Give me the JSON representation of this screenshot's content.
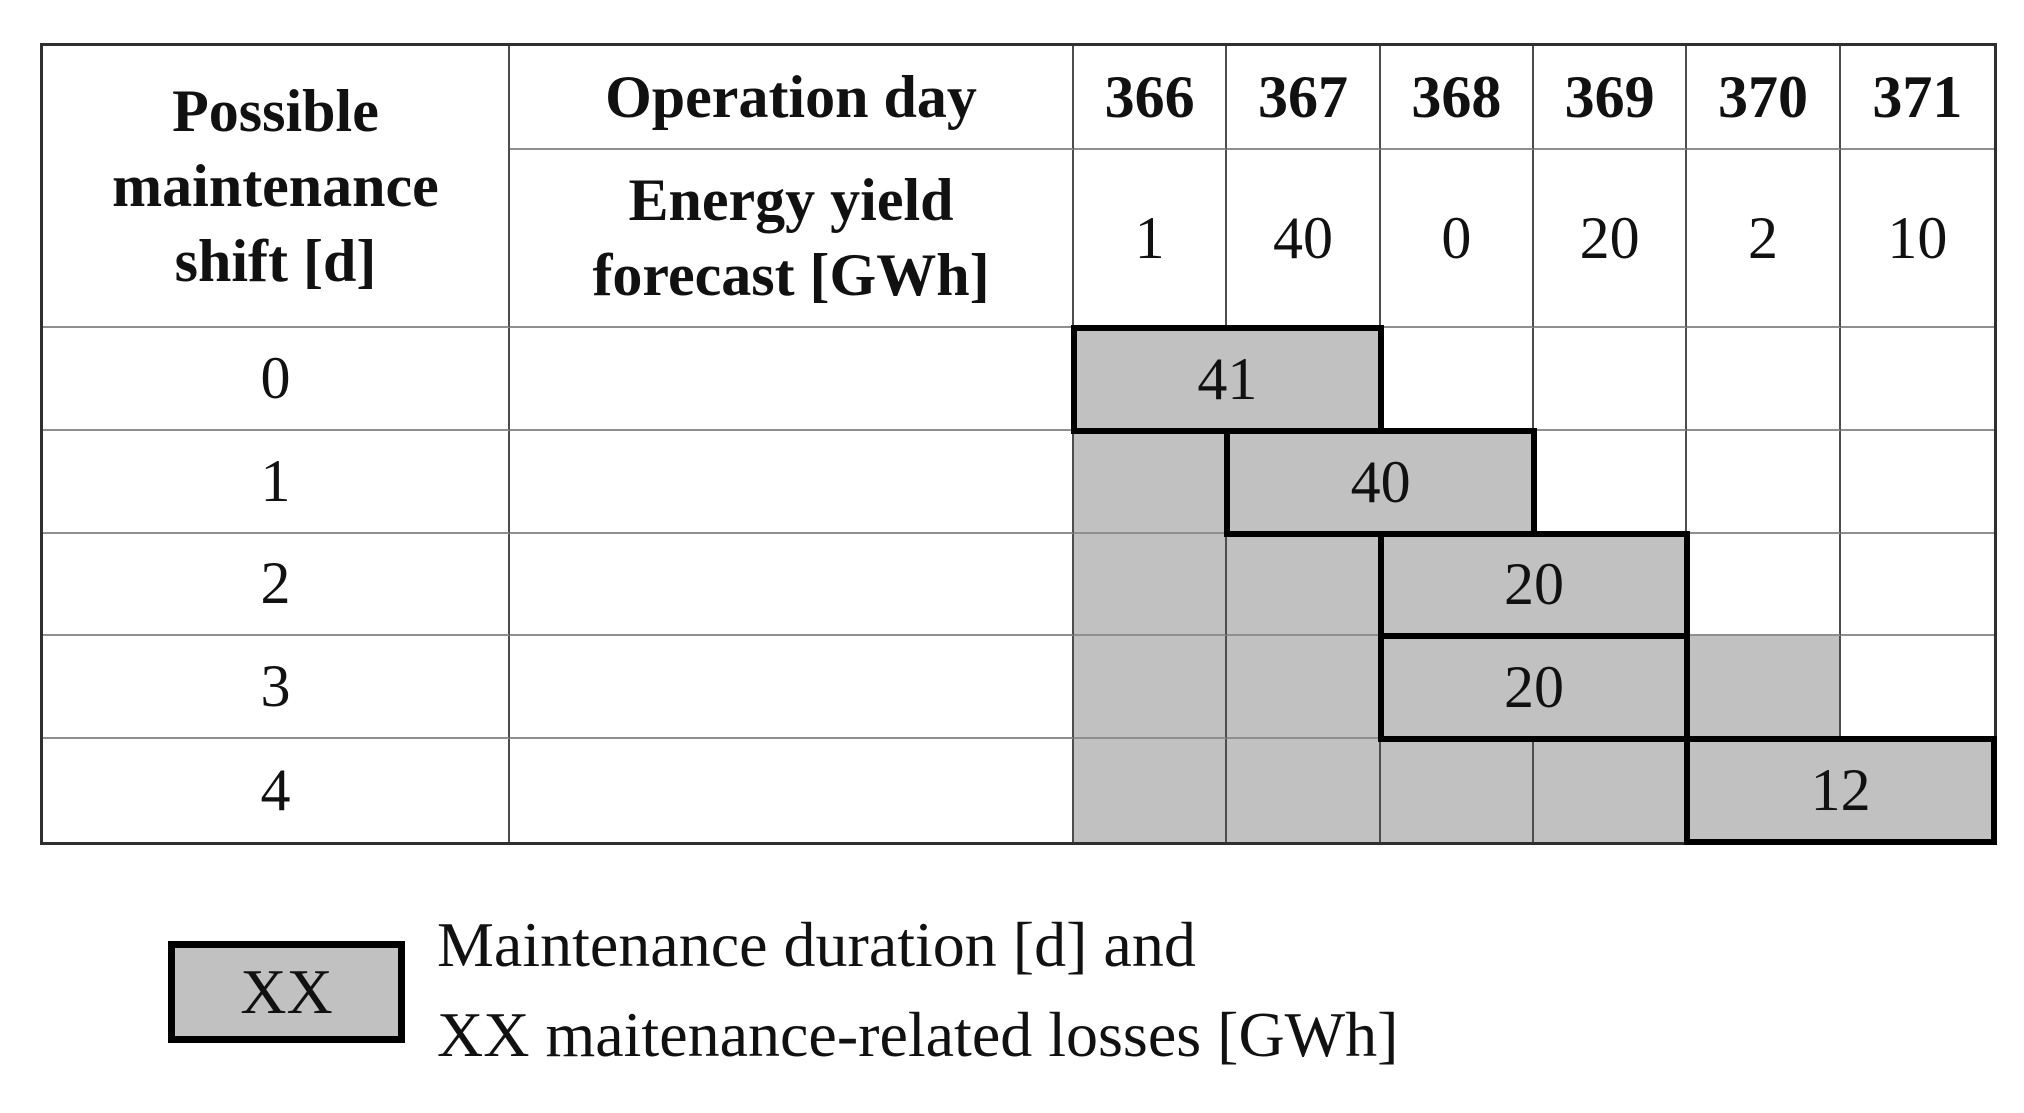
{
  "table": {
    "corner_header": "Possible maintenance shift [d]",
    "operation_day_header": "Operation day",
    "energy_yield_header_line1": "Energy yield",
    "energy_yield_header_line2": "forecast [GWh]",
    "days": [
      "366",
      "367",
      "368",
      "369",
      "370",
      "371"
    ],
    "forecasts": [
      "1",
      "40",
      "0",
      "20",
      "2",
      "10"
    ],
    "rows": [
      {
        "shift": "0",
        "loss": "41",
        "maintenance_days": [
          "366",
          "367"
        ],
        "shaded_days": []
      },
      {
        "shift": "1",
        "loss": "40",
        "maintenance_days": [
          "367",
          "368"
        ],
        "shaded_days": [
          "366"
        ]
      },
      {
        "shift": "2",
        "loss": "20",
        "maintenance_days": [
          "368",
          "369"
        ],
        "shaded_days": [
          "366",
          "367"
        ]
      },
      {
        "shift": "3",
        "loss": "20",
        "maintenance_days": [
          "368",
          "369"
        ],
        "shaded_days": [
          "366",
          "367",
          "370"
        ]
      },
      {
        "shift": "4",
        "loss": "12",
        "maintenance_days": [
          "370",
          "371"
        ],
        "shaded_days": [
          "366",
          "367",
          "368",
          "369"
        ]
      }
    ]
  },
  "legend": {
    "swatch_label": "XX",
    "line1": "Maintenance duration [d] and",
    "line2": "XX maitenance-related losses [GWh]"
  },
  "colors": {
    "shade_fill": "#c1c1c1",
    "thick_border": "#000000",
    "grid_vertical": "#4d4d4d",
    "grid_horizontal": "#8f8f8f",
    "outer_border": "#2f2f2f"
  },
  "chart_data": {
    "type": "table",
    "title": "Possible maintenance shifts vs operation-day energy yield forecast",
    "columns_operation_day": [
      366,
      367,
      368,
      369,
      370,
      371
    ],
    "energy_yield_forecast_gwh": [
      1,
      40,
      0,
      20,
      2,
      10
    ],
    "rows": [
      {
        "possible_maintenance_shift_d": 0,
        "maintenance_window_days": [
          366,
          367
        ],
        "maintenance_related_losses_gwh": 41
      },
      {
        "possible_maintenance_shift_d": 1,
        "maintenance_window_days": [
          367,
          368
        ],
        "maintenance_related_losses_gwh": 40
      },
      {
        "possible_maintenance_shift_d": 2,
        "maintenance_window_days": [
          368,
          369
        ],
        "maintenance_related_losses_gwh": 20
      },
      {
        "possible_maintenance_shift_d": 3,
        "maintenance_window_days": [
          368,
          369
        ],
        "maintenance_related_losses_gwh": 20
      },
      {
        "possible_maintenance_shift_d": 4,
        "maintenance_window_days": [
          370,
          371
        ],
        "maintenance_related_losses_gwh": 12
      }
    ],
    "legend": "Gray thick-bordered block = maintenance duration [d]; XX = maintenance-related losses [GWh]"
  }
}
